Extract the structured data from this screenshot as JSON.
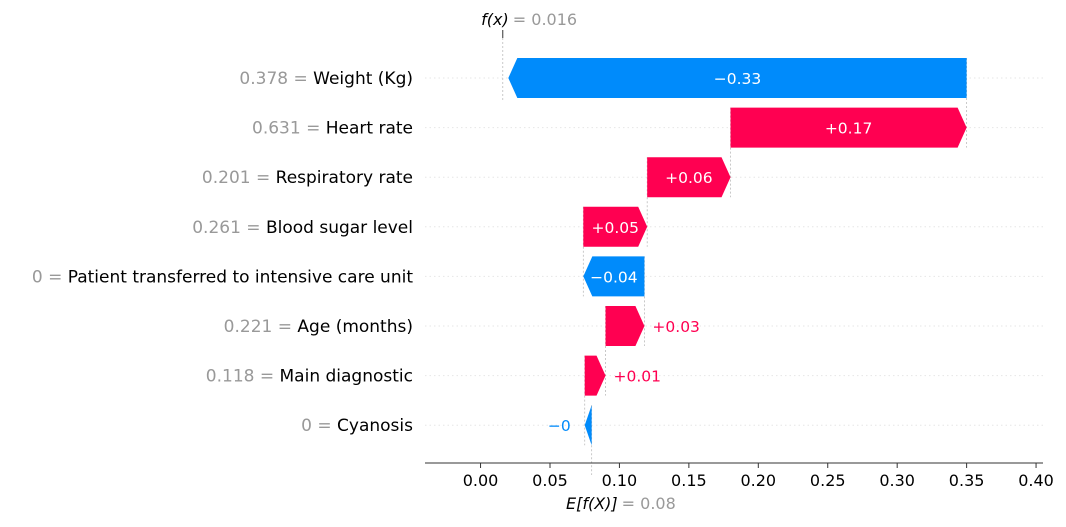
{
  "chart_data": {
    "type": "bar",
    "subtype": "waterfall",
    "base_value": 0.08,
    "final_value": 0.016,
    "base_label_prefix": "E[f(X)]",
    "base_label_value": "= 0.08",
    "final_label_prefix": "f(x)",
    "final_label_value": "= 0.016",
    "xlim": [
      -0.04,
      0.405
    ],
    "x_ticks": [
      0.0,
      0.05,
      0.1,
      0.15,
      0.2,
      0.25,
      0.3,
      0.35,
      0.4
    ],
    "x_tick_labels": [
      "0.00",
      "0.05",
      "0.10",
      "0.15",
      "0.20",
      "0.25",
      "0.30",
      "0.35",
      "0.40"
    ],
    "features": [
      {
        "name": "Weight (Kg)",
        "value_label": "0.378 =",
        "contribution": -0.33,
        "label": "−0.33"
      },
      {
        "name": "Heart rate",
        "value_label": "0.631 =",
        "contribution": 0.17,
        "label": "+0.17"
      },
      {
        "name": "Respiratory rate",
        "value_label": "0.201 =",
        "contribution": 0.06,
        "label": "+0.06"
      },
      {
        "name": "Blood sugar level",
        "value_label": "0.261 =",
        "contribution": 0.046,
        "label": "+0.05"
      },
      {
        "name": "Patient transferred to intensive care unit",
        "value_label": "0 =",
        "contribution": -0.044,
        "label": "−0.04"
      },
      {
        "name": "Age (months)",
        "value_label": "0.221 =",
        "contribution": 0.028,
        "label": "+0.03"
      },
      {
        "name": "Main diagnostic",
        "value_label": "0.118 =",
        "contribution": 0.015,
        "label": "+0.01"
      },
      {
        "name": "Cyanosis",
        "value_label": "0 =",
        "contribution": -0.005,
        "label": "−0"
      }
    ],
    "colors": {
      "positive": "#ff0051",
      "negative": "#008bfb",
      "grid": "#e6e6e6",
      "axis": "#333333",
      "muted_text": "#999999"
    }
  }
}
